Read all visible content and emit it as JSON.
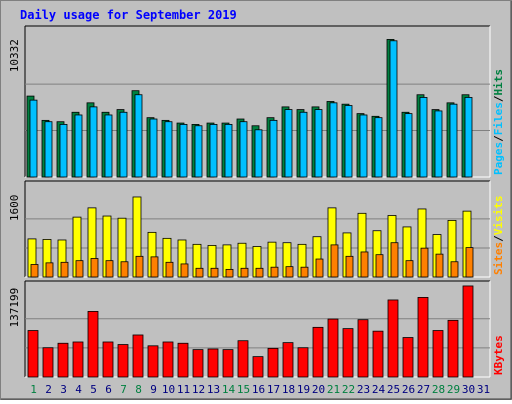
{
  "colors": {
    "background": "#c0c0c0",
    "title": "#0000ff",
    "hits": "#008040",
    "files": "#0080ff",
    "files_bar": "#00c0ff",
    "pages": "#00c0ff",
    "visits": "#ffff00",
    "sites": "#ff8000",
    "kbytes": "#ff0000",
    "weekend_day": "#008040",
    "weekday": "#000080"
  },
  "chart_data": {
    "type": "bar",
    "title": "Daily usage for September 2019",
    "categories": [
      "1",
      "2",
      "3",
      "4",
      "5",
      "6",
      "7",
      "8",
      "9",
      "10",
      "11",
      "12",
      "13",
      "14",
      "15",
      "16",
      "17",
      "18",
      "19",
      "20",
      "21",
      "22",
      "23",
      "24",
      "25",
      "26",
      "27",
      "28",
      "29",
      "30",
      "31"
    ],
    "weekend_days": [
      "1",
      "7",
      "8",
      "14",
      "15",
      "21",
      "22",
      "28",
      "29"
    ],
    "panels": [
      {
        "id": "hits_files_pages",
        "ymax_label": "10332",
        "ylim": [
          0,
          10900
        ],
        "legend": [
          "Pages",
          "Files",
          "Hits"
        ],
        "legend_separator": "/",
        "series": [
          {
            "name": "Hits",
            "values": [
              6000,
              4200,
              4100,
              4800,
              5500,
              4800,
              5000,
              6400,
              4400,
              4200,
              4000,
              3900,
              4000,
              4000,
              4300,
              3800,
              4400,
              5200,
              5000,
              5200,
              5600,
              5400,
              4700,
              4500,
              10200,
              4800,
              6100,
              5000,
              5500,
              6100
            ]
          },
          {
            "name": "Files",
            "values": [
              5700,
              4100,
              3900,
              4600,
              5200,
              4600,
              4800,
              6100,
              4300,
              4100,
              3900,
              3800,
              3900,
              3900,
              4100,
              3500,
              4200,
              5000,
              4800,
              5000,
              5500,
              5300,
              4600,
              4400,
              10100,
              4700,
              5900,
              4900,
              5400,
              5900
            ]
          },
          {
            "name": "Pages",
            "values": [
              0,
              0,
              0,
              0,
              0,
              0,
              0,
              0,
              0,
              0,
              0,
              0,
              0,
              0,
              0,
              0,
              0,
              0,
              0,
              0,
              0,
              0,
              0,
              0,
              0,
              0,
              0,
              0,
              0,
              0
            ]
          }
        ]
      },
      {
        "id": "visits_sites",
        "ymax_label": "1600",
        "ylim": [
          0,
          1690
        ],
        "legend": [
          "Sites",
          "Visits"
        ],
        "legend_separator": "/",
        "series": [
          {
            "name": "Visits",
            "values": [
              700,
              690,
              680,
              1100,
              1270,
              1120,
              1080,
              1470,
              820,
              710,
              680,
              600,
              580,
              590,
              620,
              560,
              640,
              630,
              600,
              740,
              1270,
              810,
              1170,
              850,
              1130,
              920,
              1250,
              780,
              1040,
              1210
            ]
          },
          {
            "name": "Sites",
            "values": [
              230,
              260,
              270,
              300,
              340,
              300,
              280,
              380,
              370,
              270,
              240,
              160,
              160,
              140,
              160,
              160,
              180,
              190,
              180,
              330,
              590,
              380,
              460,
              410,
              630,
              300,
              530,
              420,
              280,
              540
            ]
          }
        ]
      },
      {
        "id": "kbytes",
        "ymax_label": "137199",
        "ylim": [
          0,
          144500
        ],
        "legend": [
          "KBytes"
        ],
        "series": [
          {
            "name": "KBytes",
            "values": [
              73000,
              46000,
              53000,
              55000,
              103000,
              55000,
              51000,
              66000,
              49000,
              55000,
              53000,
              43000,
              44000,
              43000,
              57000,
              32000,
              45000,
              54000,
              46000,
              78000,
              91000,
              76000,
              90000,
              72000,
              121000,
              62000,
              125000,
              73000,
              89000,
              143000
            ]
          }
        ]
      }
    ]
  }
}
